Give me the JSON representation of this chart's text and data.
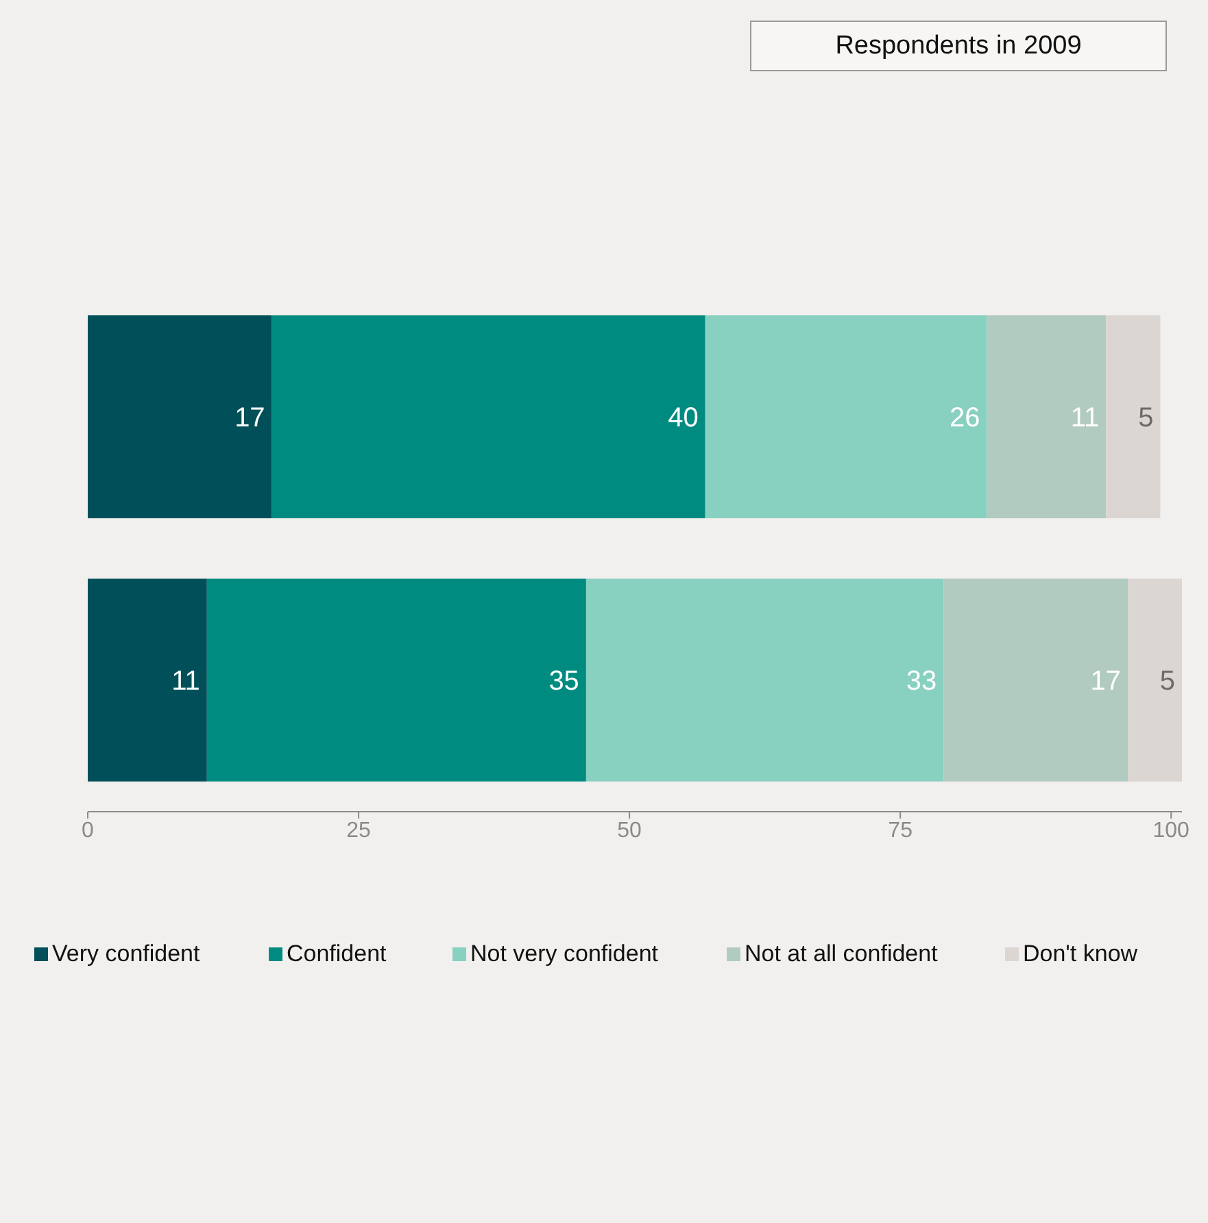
{
  "chart_data": {
    "type": "bar",
    "orientation": "horizontal",
    "stacked": true,
    "title": "Respondents in 2009",
    "categories": [
      null,
      null
    ],
    "series": [
      {
        "name": "Very confident",
        "color": "#004f59",
        "values": [
          17,
          11
        ]
      },
      {
        "name": "Confident",
        "color": "#008b80",
        "values": [
          40,
          35
        ]
      },
      {
        "name": "Not very confident",
        "color": "#88d0c0",
        "values": [
          26,
          33
        ]
      },
      {
        "name": "Not at all confident",
        "color": "#b2cbc0",
        "values": [
          11,
          17
        ]
      },
      {
        "name": "Don't know",
        "color": "#dcd6d2",
        "values": [
          5,
          5
        ]
      }
    ],
    "xlim": [
      0,
      101
    ],
    "xticks": [
      0,
      25,
      50,
      75,
      100
    ],
    "data_labels": true,
    "legend": "bottom",
    "grid": false
  }
}
